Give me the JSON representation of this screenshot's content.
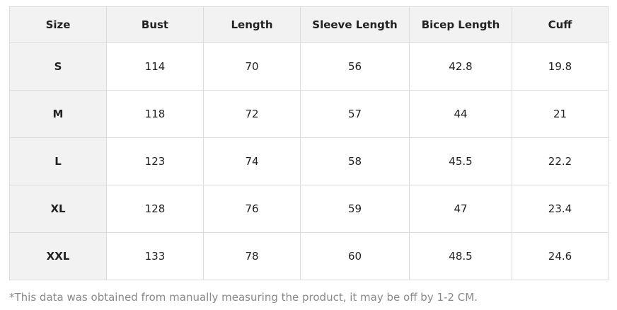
{
  "table": {
    "header": [
      "Size",
      "Bust",
      "Length",
      "Sleeve Length",
      "Bicep Length",
      "Cuff"
    ],
    "rows": [
      [
        "S",
        "114",
        "70",
        "56",
        "42.8",
        "19.8"
      ],
      [
        "M",
        "118",
        "72",
        "57",
        "44",
        "21"
      ],
      [
        "L",
        "123",
        "74",
        "58",
        "45.5",
        "22.2"
      ],
      [
        "XL",
        "128",
        "76",
        "59",
        "47",
        "23.4"
      ],
      [
        "XXL",
        "133",
        "78",
        "60",
        "48.5",
        "24.6"
      ]
    ]
  },
  "note": "*This data was obtained from manually measuring the product, it may be off by 1-2 CM."
}
